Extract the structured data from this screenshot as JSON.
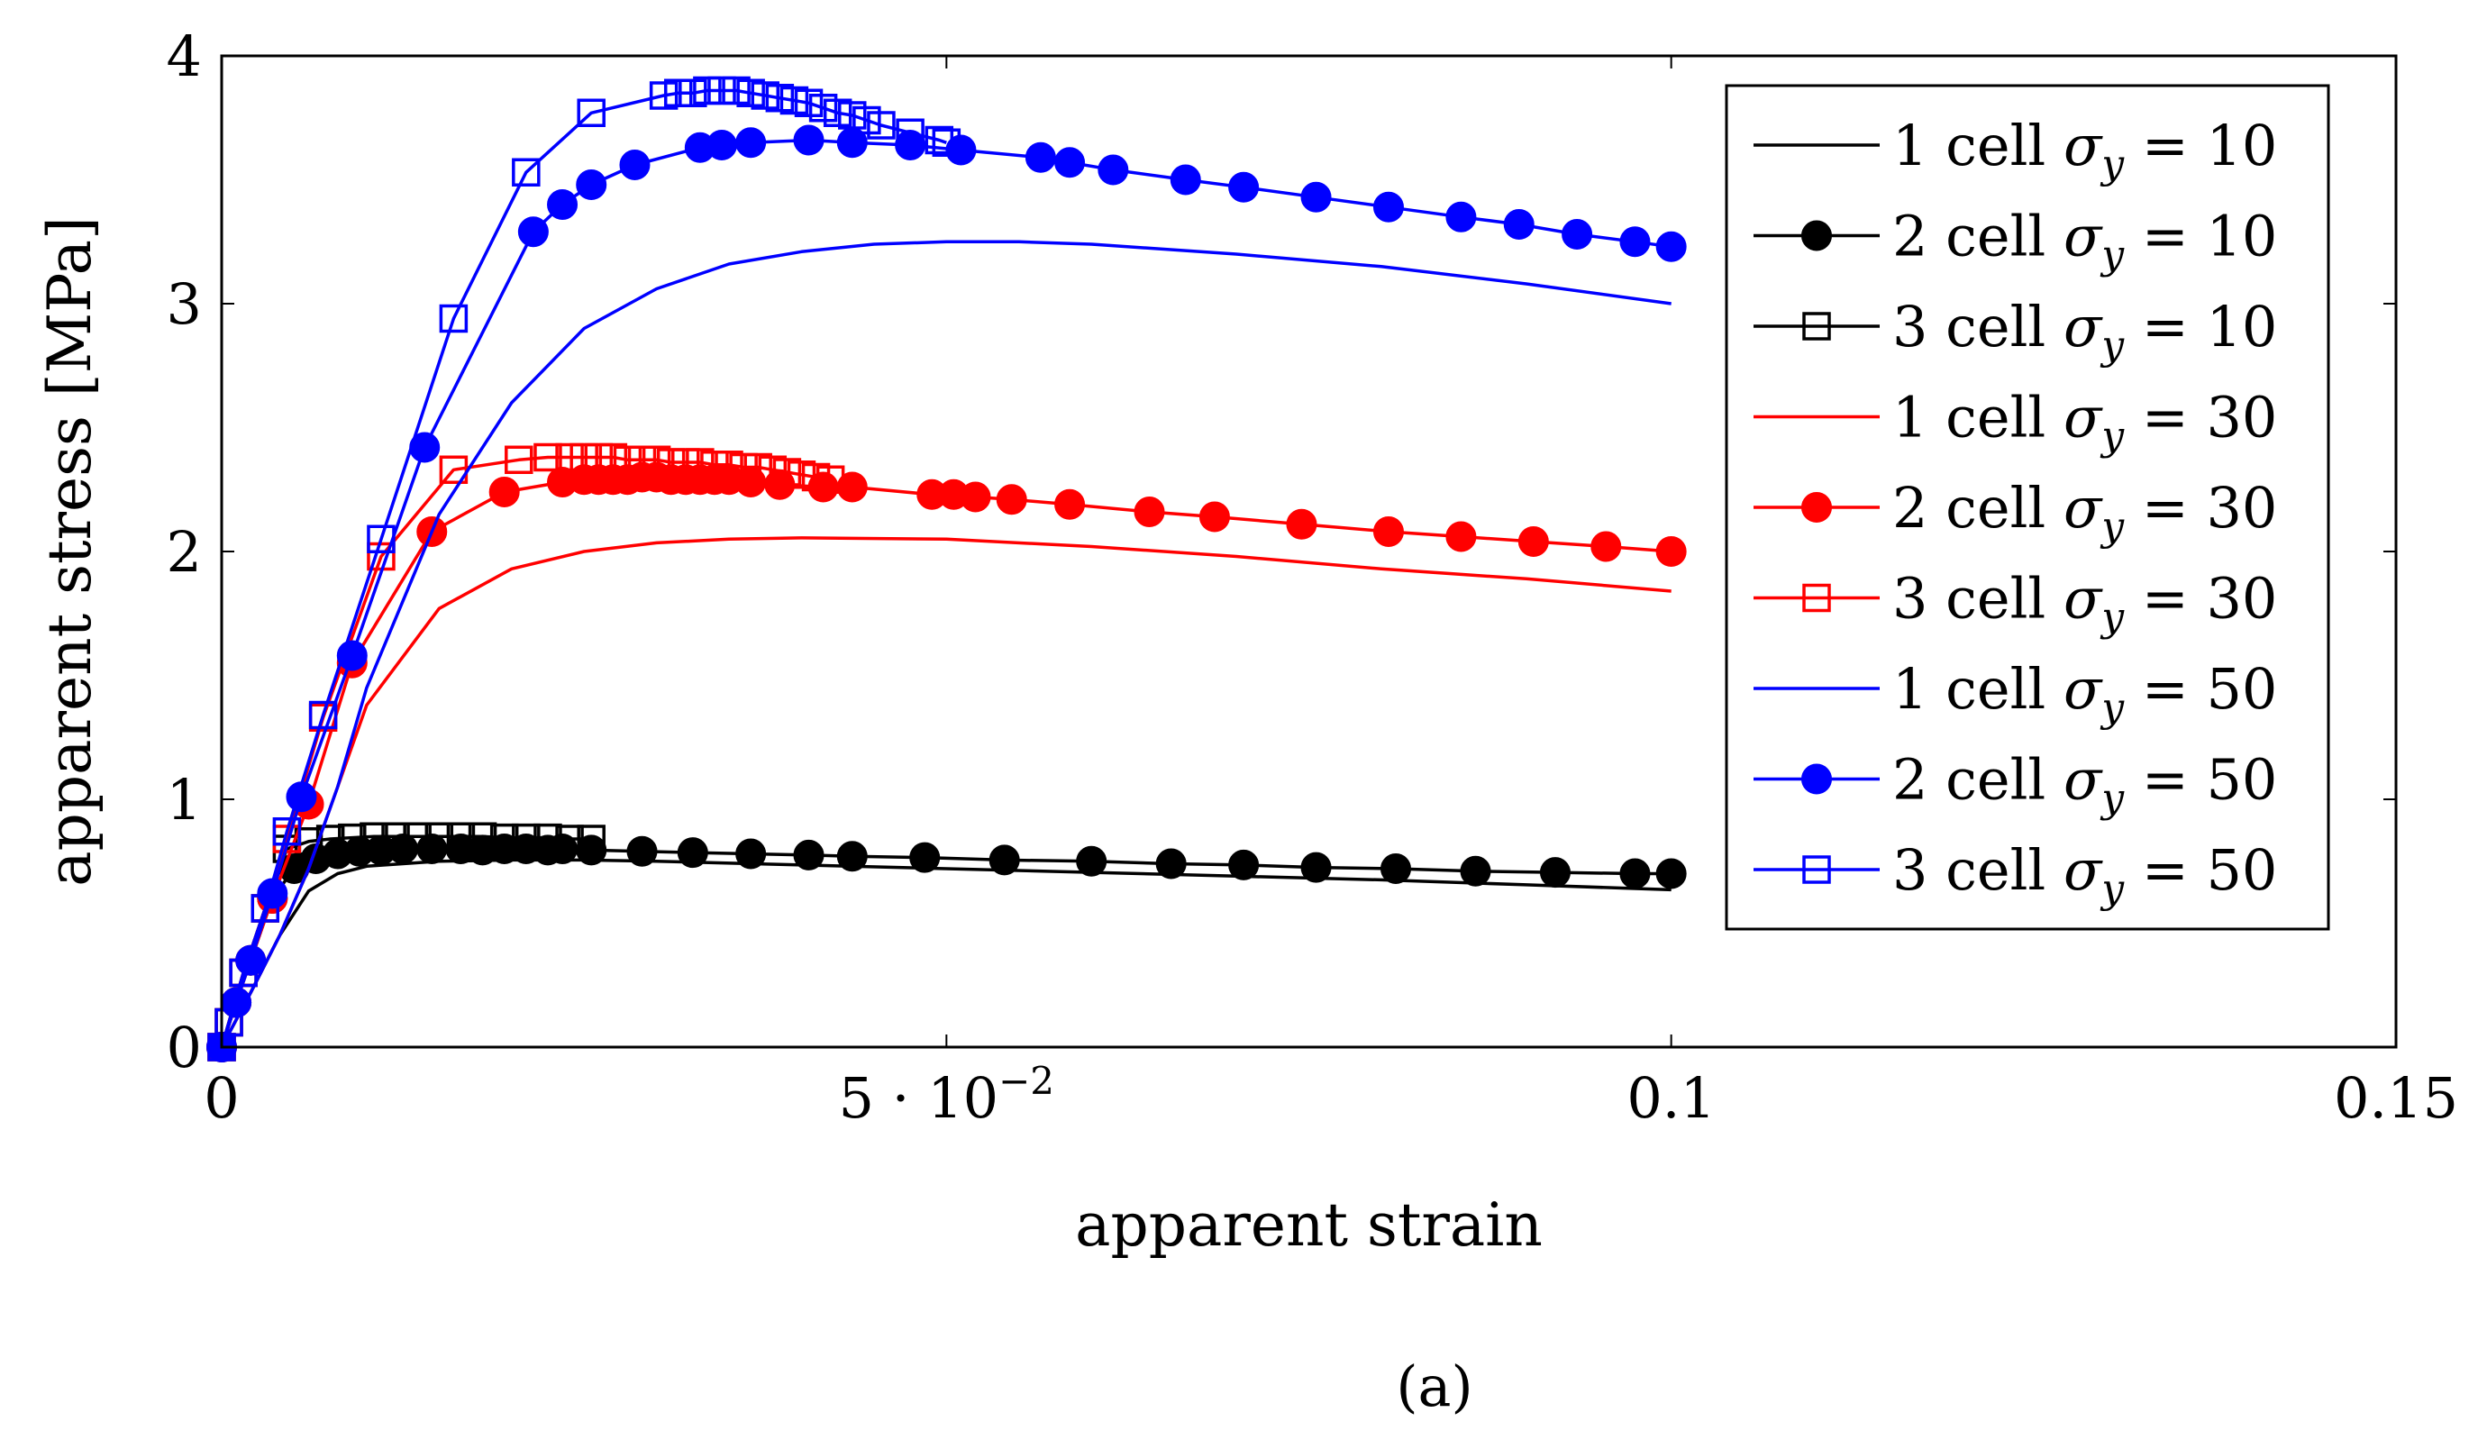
{
  "chart_data": {
    "type": "line",
    "caption": "(a)",
    "xlabel": "apparent strain",
    "ylabel": "apparent stress [MPa]",
    "xlim": [
      0,
      0.15
    ],
    "ylim": [
      0,
      4
    ],
    "x_ticks": [
      {
        "value": 0,
        "label": "0"
      },
      {
        "value": 0.05,
        "label": "5 · 10",
        "exponent": "−2"
      },
      {
        "value": 0.1,
        "label": "0.1"
      },
      {
        "value": 0.15,
        "label": "0.15"
      }
    ],
    "y_ticks": [
      {
        "value": 0,
        "label": "0"
      },
      {
        "value": 1,
        "label": "1"
      },
      {
        "value": 2,
        "label": "2"
      },
      {
        "value": 3,
        "label": "3"
      },
      {
        "value": 4,
        "label": "4"
      }
    ],
    "legend_position": "top-right",
    "colors": {
      "black": "#000000",
      "red": "#ff0000",
      "blue": "#0000ff"
    },
    "series": [
      {
        "name": "1 cell σy = 10",
        "label": "1 cell ",
        "sigma": "σ",
        "sub": "y",
        "eq": " = 10",
        "color": "#000000",
        "marker": "none",
        "x": [
          0,
          0.002,
          0.004,
          0.006,
          0.008,
          0.01,
          0.015,
          0.02,
          0.025,
          0.03,
          0.04,
          0.05,
          0.06,
          0.07,
          0.08,
          0.09,
          0.1
        ],
        "y": [
          0,
          0.22,
          0.45,
          0.63,
          0.7,
          0.73,
          0.75,
          0.755,
          0.755,
          0.75,
          0.735,
          0.72,
          0.705,
          0.69,
          0.675,
          0.655,
          0.635
        ]
      },
      {
        "name": "2 cell σy = 10",
        "label": "2 cell ",
        "sigma": "σ",
        "sub": "y",
        "eq": " = 10",
        "color": "#000000",
        "marker": "filled-circle",
        "x": [
          0,
          0.001,
          0.002,
          0.0035,
          0.005,
          0.0065,
          0.008,
          0.0095,
          0.011,
          0.0125,
          0.0145,
          0.0165,
          0.018,
          0.0195,
          0.021,
          0.0225,
          0.0235,
          0.0255,
          0.029,
          0.0325,
          0.0365,
          0.0405,
          0.0435,
          0.0485,
          0.054,
          0.06,
          0.0655,
          0.0705,
          0.0755,
          0.081,
          0.0865,
          0.092,
          0.0975,
          0.1
        ],
        "y": [
          0,
          0.18,
          0.35,
          0.6,
          0.72,
          0.76,
          0.78,
          0.79,
          0.795,
          0.8,
          0.8,
          0.8,
          0.795,
          0.8,
          0.8,
          0.795,
          0.8,
          0.795,
          0.79,
          0.785,
          0.78,
          0.775,
          0.77,
          0.765,
          0.755,
          0.75,
          0.74,
          0.735,
          0.725,
          0.72,
          0.71,
          0.705,
          0.7,
          0.7
        ]
      },
      {
        "name": "3 cell σy = 10",
        "label": "3 cell ",
        "sigma": "σ",
        "sub": "y",
        "eq": " = 10",
        "color": "#000000",
        "marker": "open-square",
        "x": [
          0,
          0.0005,
          0.0015,
          0.003,
          0.0045,
          0.006,
          0.0075,
          0.009,
          0.0105,
          0.012,
          0.0135,
          0.015,
          0.0165,
          0.018,
          0.0195,
          0.021,
          0.0225,
          0.024,
          0.0255
        ],
        "y": [
          0,
          0.1,
          0.3,
          0.56,
          0.8,
          0.83,
          0.84,
          0.845,
          0.85,
          0.85,
          0.85,
          0.85,
          0.85,
          0.85,
          0.845,
          0.845,
          0.845,
          0.84,
          0.84
        ]
      },
      {
        "name": "1 cell σy = 30",
        "label": "1 cell ",
        "sigma": "σ",
        "sub": "y",
        "eq": " = 30",
        "color": "#ff0000",
        "marker": "none",
        "x": [
          0,
          0.002,
          0.004,
          0.006,
          0.008,
          0.01,
          0.015,
          0.02,
          0.025,
          0.03,
          0.035,
          0.04,
          0.05,
          0.06,
          0.07,
          0.08,
          0.09,
          0.1
        ],
        "y": [
          0,
          0.22,
          0.45,
          0.72,
          1.05,
          1.38,
          1.77,
          1.93,
          2.0,
          2.035,
          2.05,
          2.055,
          2.05,
          2.02,
          1.98,
          1.93,
          1.89,
          1.84
        ]
      },
      {
        "name": "2 cell σy = 30",
        "label": "2 cell ",
        "sigma": "σ",
        "sub": "y",
        "eq": " = 30",
        "color": "#ff0000",
        "marker": "filled-circle",
        "x": [
          0,
          0.001,
          0.002,
          0.0035,
          0.006,
          0.009,
          0.0145,
          0.0195,
          0.0235,
          0.025,
          0.026,
          0.027,
          0.028,
          0.029,
          0.03,
          0.031,
          0.032,
          0.033,
          0.034,
          0.035,
          0.0365,
          0.0385,
          0.0415,
          0.0435,
          0.049,
          0.0505,
          0.052,
          0.0545,
          0.0585,
          0.064,
          0.0685,
          0.0745,
          0.0805,
          0.0855,
          0.0905,
          0.0955,
          0.1
        ],
        "y": [
          0,
          0.18,
          0.35,
          0.6,
          0.98,
          1.55,
          2.08,
          2.24,
          2.28,
          2.29,
          2.29,
          2.29,
          2.29,
          2.3,
          2.3,
          2.29,
          2.29,
          2.29,
          2.29,
          2.29,
          2.28,
          2.27,
          2.26,
          2.26,
          2.23,
          2.23,
          2.22,
          2.21,
          2.19,
          2.16,
          2.14,
          2.11,
          2.08,
          2.06,
          2.04,
          2.02,
          2.0
        ]
      },
      {
        "name": "3 cell σy = 30",
        "label": "3 cell ",
        "sigma": "σ",
        "sub": "y",
        "eq": " = 30",
        "color": "#ff0000",
        "marker": "open-square",
        "x": [
          0,
          0.0005,
          0.0015,
          0.003,
          0.0045,
          0.007,
          0.011,
          0.016,
          0.0205,
          0.0225,
          0.024,
          0.025,
          0.026,
          0.027,
          0.028,
          0.029,
          0.03,
          0.031,
          0.032,
          0.033,
          0.034,
          0.035,
          0.036,
          0.037,
          0.038,
          0.039,
          0.04,
          0.041,
          0.042
        ],
        "y": [
          0,
          0.1,
          0.3,
          0.56,
          0.84,
          1.33,
          1.98,
          2.33,
          2.37,
          2.38,
          2.38,
          2.38,
          2.38,
          2.38,
          2.37,
          2.37,
          2.37,
          2.36,
          2.36,
          2.36,
          2.35,
          2.35,
          2.34,
          2.34,
          2.33,
          2.32,
          2.31,
          2.3,
          2.29
        ]
      },
      {
        "name": "1 cell σy = 50",
        "label": "1 cell ",
        "sigma": "σ",
        "sub": "y",
        "eq": " = 50",
        "color": "#0000ff",
        "marker": "none",
        "x": [
          0,
          0.002,
          0.004,
          0.006,
          0.008,
          0.01,
          0.015,
          0.02,
          0.025,
          0.03,
          0.035,
          0.04,
          0.045,
          0.05,
          0.055,
          0.06,
          0.07,
          0.08,
          0.09,
          0.1
        ],
        "y": [
          0,
          0.22,
          0.45,
          0.72,
          1.05,
          1.45,
          2.15,
          2.6,
          2.9,
          3.06,
          3.16,
          3.21,
          3.24,
          3.25,
          3.25,
          3.24,
          3.2,
          3.15,
          3.08,
          3.0
        ]
      },
      {
        "name": "2 cell σy = 50",
        "label": "2 cell ",
        "sigma": "σ",
        "sub": "y",
        "eq": " = 50",
        "color": "#0000ff",
        "marker": "filled-circle",
        "x": [
          0,
          0.001,
          0.002,
          0.0035,
          0.0055,
          0.009,
          0.014,
          0.0215,
          0.0235,
          0.0255,
          0.0285,
          0.033,
          0.0345,
          0.0365,
          0.0405,
          0.0435,
          0.0475,
          0.051,
          0.0565,
          0.0585,
          0.0615,
          0.0665,
          0.0705,
          0.0755,
          0.0805,
          0.0855,
          0.0895,
          0.0935,
          0.0975,
          0.1
        ],
        "y": [
          0,
          0.18,
          0.35,
          0.62,
          1.01,
          1.58,
          2.42,
          3.29,
          3.4,
          3.48,
          3.56,
          3.63,
          3.64,
          3.65,
          3.66,
          3.65,
          3.64,
          3.62,
          3.59,
          3.57,
          3.54,
          3.5,
          3.47,
          3.43,
          3.39,
          3.35,
          3.32,
          3.28,
          3.25,
          3.23
        ]
      },
      {
        "name": "3 cell σy = 50",
        "label": "3 cell ",
        "sigma": "σ",
        "sub": "y",
        "eq": " = 50",
        "color": "#0000ff",
        "marker": "open-square",
        "x": [
          0,
          0.0005,
          0.0015,
          0.003,
          0.0045,
          0.007,
          0.011,
          0.016,
          0.021,
          0.0255,
          0.0305,
          0.0315,
          0.0325,
          0.0335,
          0.0345,
          0.0355,
          0.0365,
          0.0375,
          0.0385,
          0.0395,
          0.0405,
          0.0415,
          0.0425,
          0.0435,
          0.0445,
          0.0455,
          0.0475,
          0.0495,
          0.05
        ],
        "y": [
          0,
          0.1,
          0.3,
          0.56,
          0.87,
          1.34,
          2.05,
          2.94,
          3.53,
          3.77,
          3.84,
          3.85,
          3.85,
          3.86,
          3.86,
          3.86,
          3.85,
          3.84,
          3.83,
          3.82,
          3.81,
          3.79,
          3.77,
          3.76,
          3.74,
          3.72,
          3.69,
          3.66,
          3.65
        ]
      }
    ]
  }
}
